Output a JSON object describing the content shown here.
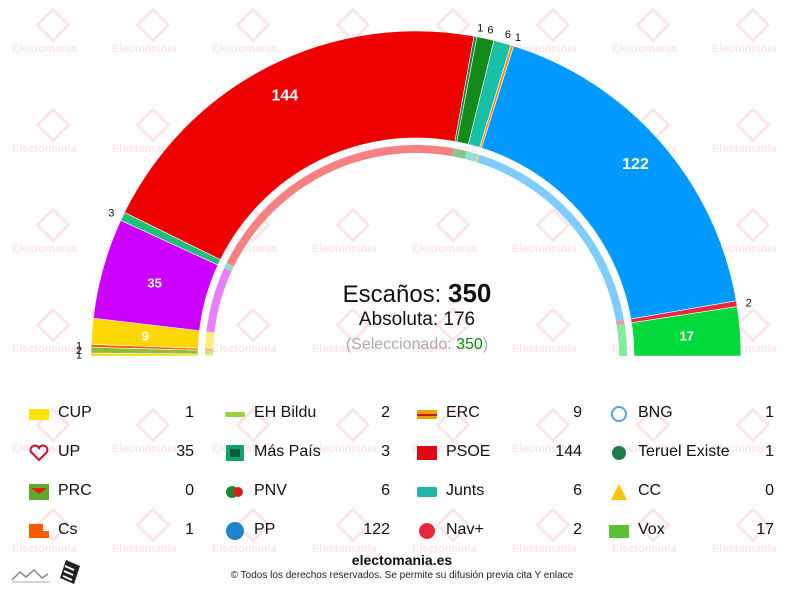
{
  "watermark_text": "Electomania",
  "summary": {
    "seats_label": "Escaños:",
    "seats_total": "350",
    "majority_label": "Absoluta:",
    "majority_value": "176",
    "selected_prefix": "(Seleccionado:",
    "selected_value": "350",
    "selected_suffix": ")"
  },
  "chart_data": {
    "type": "hemicycle",
    "total_seats": 350,
    "outer_labels": [
      "1",
      "2",
      "1",
      "9",
      "35",
      "3",
      "144",
      "1",
      "6",
      "6",
      "1",
      "122",
      "2",
      "17"
    ],
    "segments": [
      {
        "name": "CUP",
        "seats": 1,
        "color": "#ffd200"
      },
      {
        "name": "EH Bildu",
        "seats": 2,
        "color": "#8dbf3a"
      },
      {
        "name": "Cs",
        "seats": 1,
        "color": "#ff6000"
      },
      {
        "name": "ERC",
        "seats": 9,
        "color": "#ffd700"
      },
      {
        "name": "UP",
        "seats": 35,
        "color": "#cc00ff"
      },
      {
        "name": "Más País",
        "seats": 3,
        "color": "#1fbe7a"
      },
      {
        "name": "PSOE",
        "seats": 144,
        "color": "#ee0000"
      },
      {
        "name": "Teruel Existe",
        "seats": 1,
        "color": "#14804a"
      },
      {
        "name": "PNV",
        "seats": 6,
        "color": "#148a1a"
      },
      {
        "name": "Junts",
        "seats": 6,
        "color": "#19c0a8"
      },
      {
        "name": "BNG",
        "seats": 1,
        "color": "#ff8c1a"
      },
      {
        "name": "PP",
        "seats": 122,
        "color": "#0099ff"
      },
      {
        "name": "Nav+",
        "seats": 2,
        "color": "#e8283c"
      },
      {
        "name": "Vox",
        "seats": 17,
        "color": "#00d83c"
      }
    ]
  },
  "legend": [
    {
      "name": "CUP",
      "seats": "1",
      "logo": "cup-logo",
      "color": "#ffe600"
    },
    {
      "name": "EH Bildu",
      "seats": "2",
      "logo": "eh-bildu-logo",
      "color": "#9ccf3c"
    },
    {
      "name": "ERC",
      "seats": "9",
      "logo": "erc-logo",
      "color": "#f2a000"
    },
    {
      "name": "BNG",
      "seats": "1",
      "logo": "bng-logo",
      "color": "#5aa0e0"
    },
    {
      "name": "UP",
      "seats": "35",
      "logo": "up-logo",
      "color": "#c8102e"
    },
    {
      "name": "Más País",
      "seats": "3",
      "logo": "mas-pais-logo",
      "color": "#0fa36b"
    },
    {
      "name": "PSOE",
      "seats": "144",
      "logo": "psoe-logo",
      "color": "#e30613"
    },
    {
      "name": "Teruel Existe",
      "seats": "1",
      "logo": "teruel-existe-logo",
      "color": "#1f7a4a"
    },
    {
      "name": "PRC",
      "seats": "0",
      "logo": "prc-logo",
      "color": "#5fa829"
    },
    {
      "name": "PNV",
      "seats": "6",
      "logo": "pnv-logo",
      "color": "#1b8a2e"
    },
    {
      "name": "Junts",
      "seats": "6",
      "logo": "junts-logo",
      "color": "#20b5a5"
    },
    {
      "name": "CC",
      "seats": "0",
      "logo": "cc-logo",
      "color": "#f6c800"
    },
    {
      "name": "Cs",
      "seats": "1",
      "logo": "cs-logo",
      "color": "#ff5a00"
    },
    {
      "name": "PP",
      "seats": "122",
      "logo": "pp-logo",
      "color": "#1d84ce"
    },
    {
      "name": "Nav+",
      "seats": "2",
      "logo": "nav-plus-logo",
      "color": "#e8283c"
    },
    {
      "name": "Vox",
      "seats": "17",
      "logo": "vox-logo",
      "color": "#5ac035"
    }
  ],
  "footer": {
    "site": "electomania.es",
    "copyright": "© Todos los derechos reservados. Se permite su difusión previa cita Y enlace"
  }
}
